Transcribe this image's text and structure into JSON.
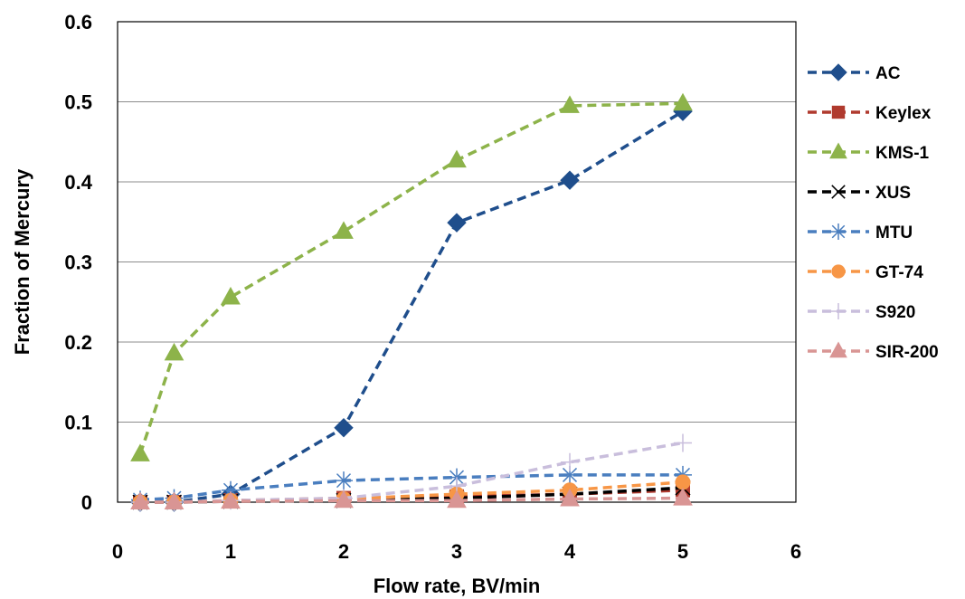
{
  "chart_data": {
    "type": "line",
    "xlabel": "Flow rate, BV/min",
    "ylabel": "Fraction of Mercury",
    "xlim": [
      0,
      6
    ],
    "ylim": [
      0,
      0.6
    ],
    "x_ticks": [
      "0",
      "1",
      "2",
      "3",
      "4",
      "5",
      "6"
    ],
    "y_ticks": [
      "0",
      "0.1",
      "0.2",
      "0.3",
      "0.4",
      "0.5",
      "0.6"
    ],
    "grid": "horizontal",
    "legend_position": "right",
    "x": [
      0.2,
      0.5,
      1,
      2,
      3,
      4,
      5
    ],
    "series": [
      {
        "name": "AC",
        "color": "#1f4e8c",
        "marker": "diamond",
        "values": [
          0.0,
          0.0,
          0.01,
          0.093,
          0.349,
          0.402,
          0.488
        ]
      },
      {
        "name": "Keylex",
        "color": "#b03a2e",
        "marker": "square",
        "values": [
          0.0,
          0.0,
          0.002,
          0.005,
          0.007,
          0.01,
          0.015
        ]
      },
      {
        "name": "KMS-1",
        "color": "#8db34a",
        "marker": "triangle",
        "values": [
          0.06,
          0.186,
          0.256,
          0.338,
          0.427,
          0.495,
          0.498
        ]
      },
      {
        "name": "XUS",
        "color": "#000000",
        "marker": "x",
        "values": [
          0.0,
          0.0,
          0.001,
          0.002,
          0.005,
          0.01,
          0.018
        ]
      },
      {
        "name": "MTU",
        "color": "#4a7ebf",
        "marker": "asterisk",
        "values": [
          0.003,
          0.005,
          0.015,
          0.027,
          0.031,
          0.034,
          0.034
        ]
      },
      {
        "name": "GT-74",
        "color": "#f79646",
        "marker": "circle",
        "values": [
          0.0,
          0.0,
          0.002,
          0.004,
          0.01,
          0.015,
          0.025
        ]
      },
      {
        "name": "S920",
        "color": "#c9bedc",
        "marker": "plus",
        "values": [
          0.0,
          0.0,
          0.002,
          0.005,
          0.02,
          0.05,
          0.074
        ]
      },
      {
        "name": "SIR-200",
        "color": "#d99594",
        "marker": "triangle",
        "values": [
          0.0,
          0.0,
          0.001,
          0.002,
          0.002,
          0.004,
          0.005
        ]
      }
    ]
  }
}
